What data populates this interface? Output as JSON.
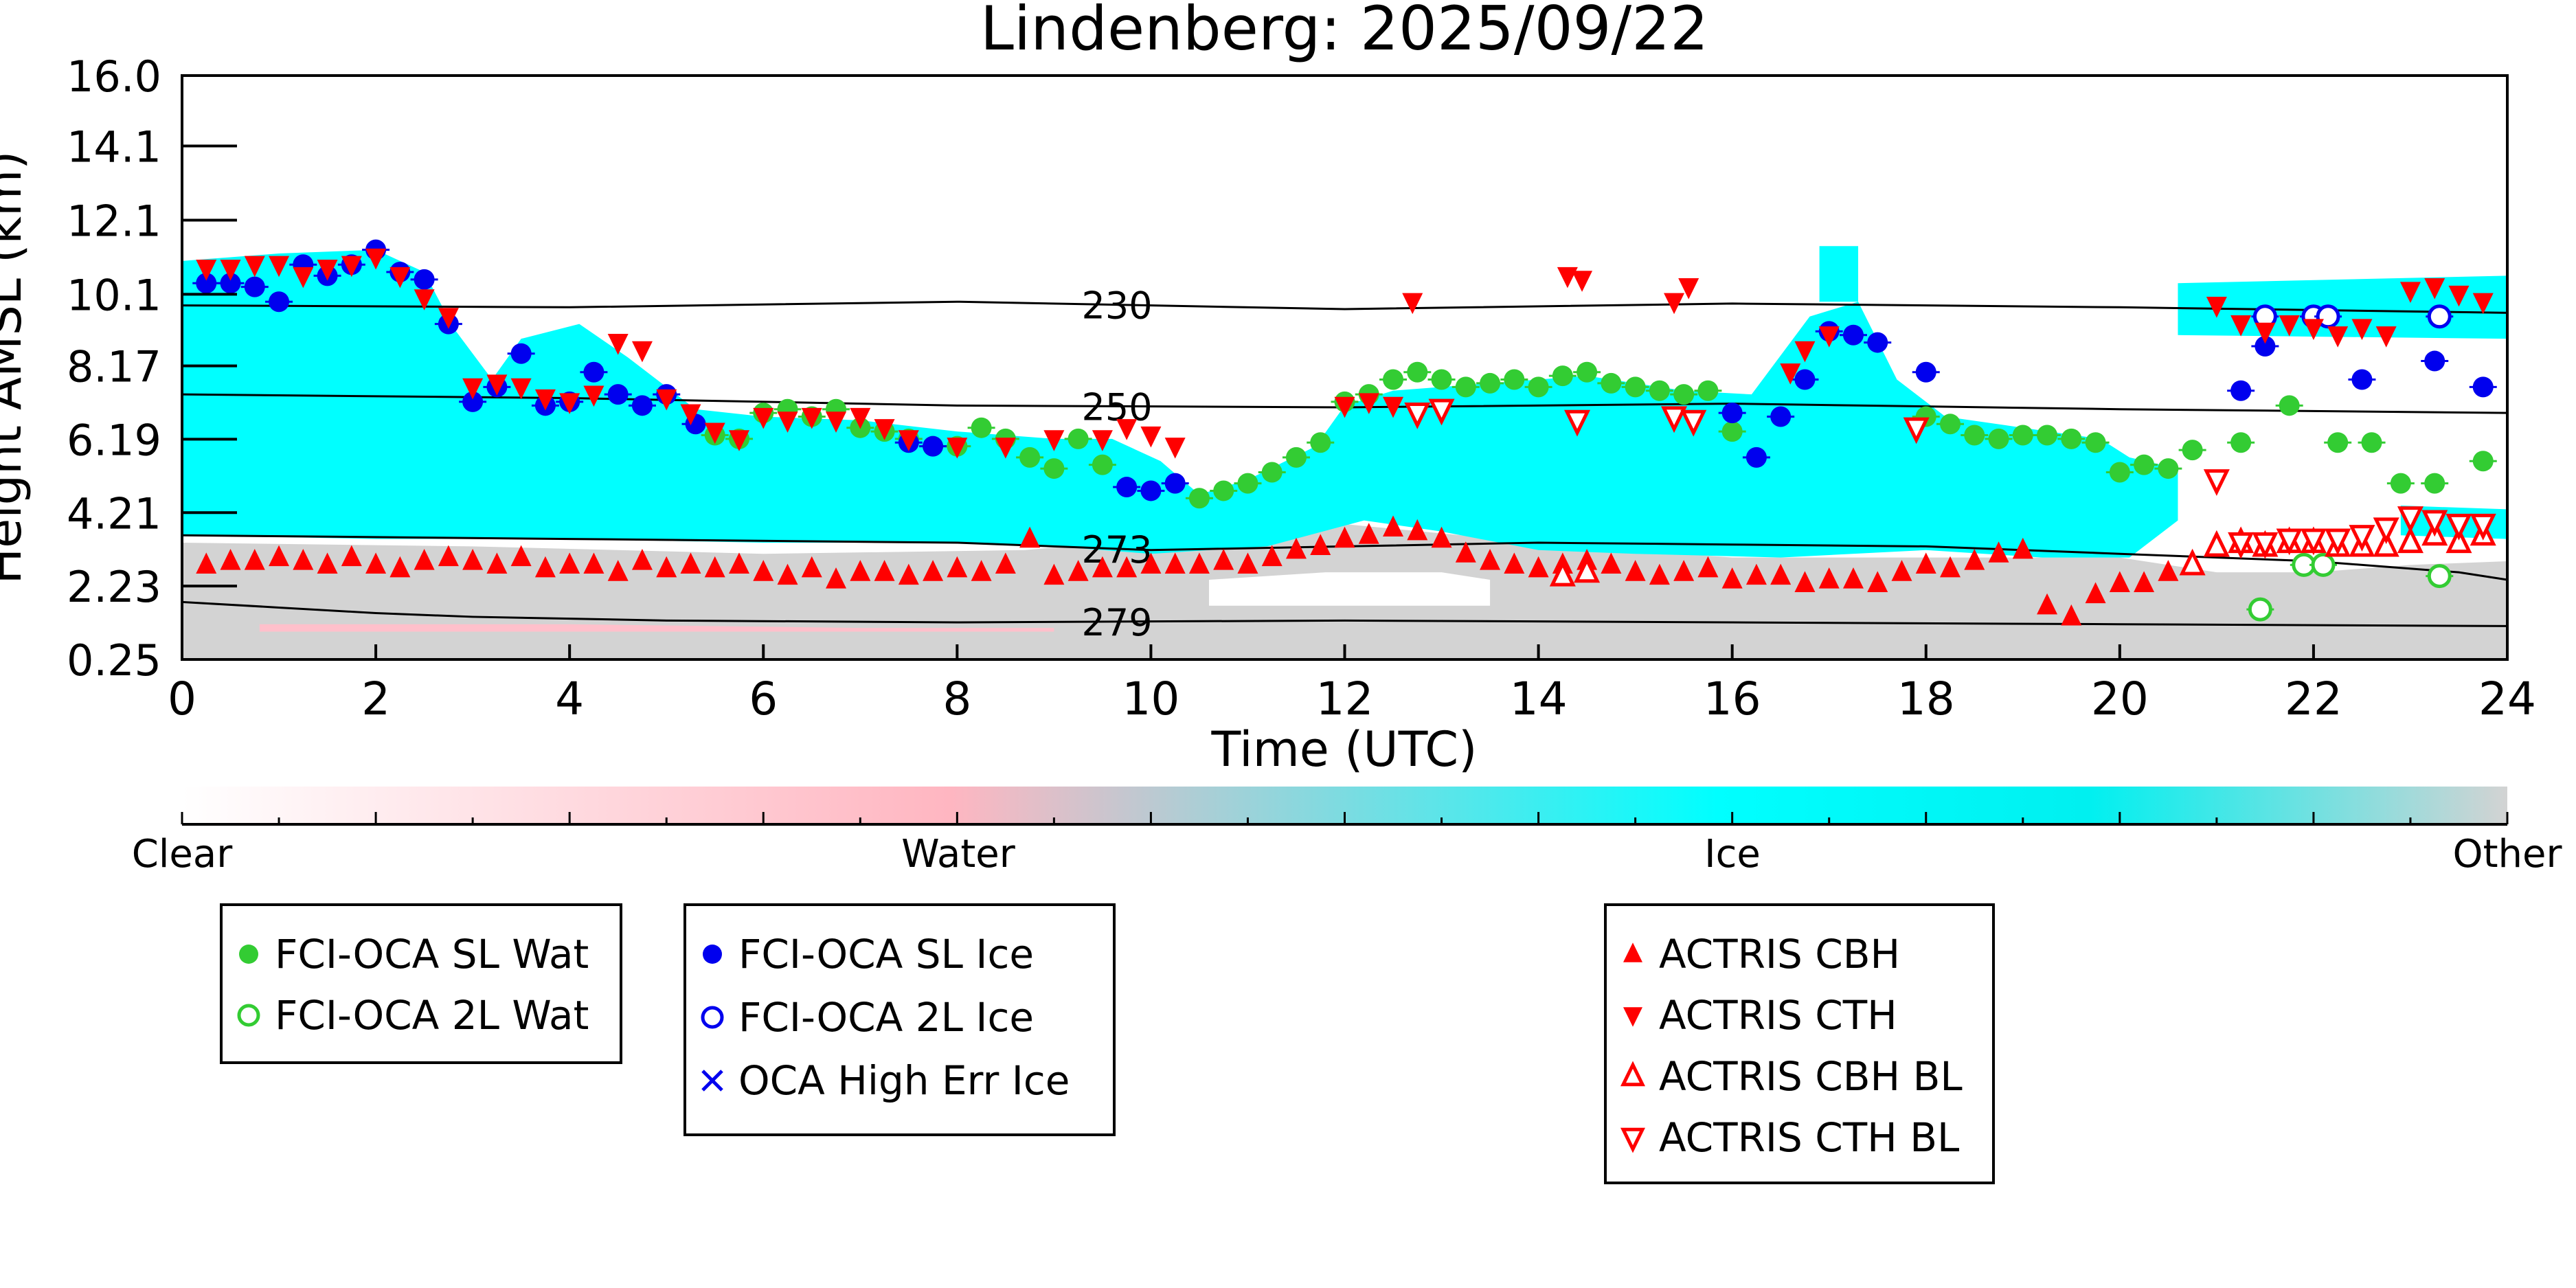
{
  "chart_data": {
    "type": "scatter",
    "title": "Lindenberg: 2025/09/22",
    "xlabel": "Time (UTC)",
    "ylabel": "Height AMSL (km)",
    "xlim": [
      0,
      24
    ],
    "ylim": [
      0.25,
      16.0
    ],
    "x_ticks": [
      "0",
      "2",
      "4",
      "6",
      "8",
      "10",
      "12",
      "14",
      "16",
      "18",
      "20",
      "22",
      "24"
    ],
    "y_ticks": [
      "0.25",
      "2.23",
      "4.21",
      "6.19",
      "8.17",
      "10.1",
      "12.1",
      "14.1",
      "16.0"
    ],
    "colorbar": {
      "labels": [
        "Clear",
        "Water",
        "Ice",
        "Other"
      ],
      "colors": [
        "#ffffff",
        "#ffb6c1",
        "#00ffff",
        "#d3d3d3"
      ]
    },
    "background_colors": {
      "ice": "#00ffff",
      "other": "#d3d3d3",
      "water": "#ffc0cb",
      "clear": "#ffffff"
    },
    "isotherms": [
      {
        "label": "230",
        "points": [
          [
            0,
            9.8
          ],
          [
            4,
            9.75
          ],
          [
            8,
            9.9
          ],
          [
            12,
            9.7
          ],
          [
            16,
            9.85
          ],
          [
            20,
            9.75
          ],
          [
            24,
            9.6
          ]
        ]
      },
      {
        "label": "250",
        "points": [
          [
            0,
            7.4
          ],
          [
            4,
            7.3
          ],
          [
            8,
            7.1
          ],
          [
            12,
            7.05
          ],
          [
            16,
            7.15
          ],
          [
            20,
            7.0
          ],
          [
            24,
            6.9
          ]
        ]
      },
      {
        "label": "273",
        "points": [
          [
            0,
            3.6
          ],
          [
            4,
            3.5
          ],
          [
            8,
            3.4
          ],
          [
            10,
            3.2
          ],
          [
            12,
            3.3
          ],
          [
            14,
            3.4
          ],
          [
            16,
            3.35
          ],
          [
            18,
            3.3
          ],
          [
            20,
            3.1
          ],
          [
            22,
            2.9
          ],
          [
            23.5,
            2.6
          ],
          [
            24,
            2.4
          ]
        ]
      },
      {
        "label": "279",
        "points": [
          [
            0,
            1.8
          ],
          [
            1,
            1.65
          ],
          [
            2,
            1.5
          ],
          [
            3,
            1.4
          ],
          [
            5,
            1.3
          ],
          [
            8,
            1.25
          ],
          [
            12,
            1.3
          ],
          [
            16,
            1.25
          ],
          [
            20,
            1.2
          ],
          [
            24,
            1.15
          ]
        ]
      }
    ],
    "series": [
      {
        "name": "FCI-OCA SL Wat",
        "marker": "filled-circle",
        "color": "#33cc33",
        "x": [
          5.5,
          5.75,
          6.0,
          6.25,
          6.5,
          6.75,
          7.0,
          7.25,
          7.5,
          7.75,
          8.0,
          8.25,
          8.5,
          8.75,
          9.0,
          9.25,
          9.5,
          10.5,
          10.75,
          11.0,
          11.25,
          11.5,
          11.75,
          12.0,
          12.25,
          12.5,
          12.75,
          13.0,
          13.25,
          13.5,
          13.75,
          14.0,
          14.25,
          14.5,
          14.75,
          15.0,
          15.25,
          15.5,
          15.75,
          16.0,
          18.0,
          18.25,
          18.5,
          18.75,
          19.0,
          19.25,
          19.5,
          19.75,
          20.0,
          20.25,
          20.5,
          20.75,
          21.25,
          21.75,
          22.25,
          22.6,
          22.9,
          23.25,
          23.75
        ],
        "y": [
          6.3,
          6.2,
          6.9,
          7.0,
          6.8,
          7.0,
          6.5,
          6.4,
          6.2,
          6.0,
          6.0,
          6.5,
          6.2,
          5.7,
          5.4,
          6.2,
          5.5,
          4.6,
          4.8,
          5.0,
          5.3,
          5.7,
          6.1,
          7.2,
          7.4,
          7.8,
          8.0,
          7.8,
          7.6,
          7.7,
          7.8,
          7.6,
          7.9,
          8.0,
          7.7,
          7.6,
          7.5,
          7.4,
          7.5,
          6.4,
          6.8,
          6.6,
          6.3,
          6.2,
          6.3,
          6.3,
          6.2,
          6.1,
          5.3,
          5.5,
          5.4,
          5.9,
          6.1,
          7.1,
          6.1,
          6.1,
          5.0,
          5.0,
          5.6
        ]
      },
      {
        "name": "FCI-OCA 2L Wat",
        "marker": "open-circle",
        "color": "#33cc33",
        "x": [
          21.45,
          21.9,
          22.1,
          23.3
        ],
        "y": [
          1.6,
          2.8,
          2.8,
          2.5
        ]
      },
      {
        "name": "FCI-OCA SL Ice",
        "marker": "filled-circle",
        "color": "#0000ee",
        "x": [
          0.25,
          0.5,
          0.75,
          1.0,
          1.25,
          1.5,
          1.75,
          2.0,
          2.25,
          2.5,
          2.75,
          3.0,
          3.25,
          3.5,
          3.75,
          4.0,
          4.25,
          4.5,
          4.75,
          5.0,
          5.3,
          7.5,
          7.75,
          9.75,
          10.0,
          10.25,
          16.0,
          16.25,
          16.5,
          16.75,
          17.0,
          17.25,
          17.5,
          18.0,
          21.25,
          21.5,
          22.5,
          23.25,
          23.75
        ],
        "y": [
          10.4,
          10.4,
          10.3,
          9.9,
          10.9,
          10.6,
          10.9,
          11.3,
          10.7,
          10.5,
          9.3,
          7.2,
          7.6,
          8.5,
          7.1,
          7.2,
          8.0,
          7.4,
          7.1,
          7.4,
          6.6,
          6.1,
          6.0,
          4.9,
          4.8,
          5.0,
          6.9,
          5.7,
          6.8,
          7.8,
          9.1,
          9.0,
          8.8,
          8.0,
          7.5,
          8.7,
          7.8,
          8.3,
          7.6
        ]
      },
      {
        "name": "FCI-OCA 2L Ice",
        "marker": "open-circle",
        "color": "#0000ee",
        "x": [
          21.5,
          22.0,
          22.15,
          23.3
        ],
        "y": [
          9.5,
          9.5,
          9.5,
          9.5
        ]
      },
      {
        "name": "OCA High Err Ice",
        "marker": "x",
        "color": "#0000ee",
        "x": [],
        "y": []
      },
      {
        "name": "ACTRIS CBH",
        "marker": "triangle-up",
        "color": "#ff0000",
        "x": [
          0.25,
          0.5,
          0.75,
          1.0,
          1.25,
          1.5,
          1.75,
          2.0,
          2.25,
          2.5,
          2.75,
          3.0,
          3.25,
          3.5,
          3.75,
          4.0,
          4.25,
          4.5,
          4.75,
          5.0,
          5.25,
          5.5,
          5.75,
          6.0,
          6.25,
          6.5,
          6.75,
          7.0,
          7.25,
          7.5,
          7.75,
          8.0,
          8.25,
          8.5,
          8.75,
          9.0,
          9.25,
          9.5,
          9.75,
          10.0,
          10.25,
          10.5,
          10.75,
          11.0,
          11.25,
          11.5,
          11.75,
          12.0,
          12.25,
          12.5,
          12.75,
          13.0,
          13.25,
          13.5,
          13.75,
          14.0,
          14.25,
          14.5,
          14.75,
          15.0,
          15.25,
          15.5,
          15.75,
          16.0,
          16.25,
          16.5,
          16.75,
          17.0,
          17.25,
          17.5,
          17.75,
          18.0,
          18.25,
          18.5,
          18.75,
          19.0,
          19.25,
          19.5,
          19.75,
          20.0,
          20.25,
          20.5
        ],
        "y": [
          2.8,
          2.9,
          2.9,
          3.0,
          2.9,
          2.8,
          3.0,
          2.8,
          2.7,
          2.9,
          3.0,
          2.9,
          2.8,
          3.0,
          2.7,
          2.8,
          2.8,
          2.6,
          2.9,
          2.7,
          2.8,
          2.7,
          2.8,
          2.6,
          2.5,
          2.7,
          2.4,
          2.6,
          2.6,
          2.5,
          2.6,
          2.7,
          2.6,
          2.8,
          3.5,
          2.5,
          2.6,
          2.7,
          2.7,
          2.8,
          2.8,
          2.8,
          2.9,
          2.8,
          3.0,
          3.2,
          3.3,
          3.5,
          3.6,
          3.8,
          3.7,
          3.5,
          3.1,
          2.9,
          2.8,
          2.7,
          2.8,
          2.9,
          2.8,
          2.6,
          2.5,
          2.6,
          2.7,
          2.4,
          2.5,
          2.5,
          2.3,
          2.4,
          2.4,
          2.3,
          2.6,
          2.8,
          2.7,
          2.9,
          3.1,
          3.2,
          1.7,
          1.4,
          2.0,
          2.3,
          2.3,
          2.6
        ]
      },
      {
        "name": "ACTRIS CTH",
        "marker": "triangle-down",
        "color": "#ff0000",
        "x": [
          0.25,
          0.5,
          0.75,
          1.0,
          1.25,
          1.5,
          1.75,
          2.0,
          2.25,
          2.5,
          2.75,
          3.0,
          3.25,
          3.5,
          3.75,
          4.0,
          4.25,
          4.5,
          4.75,
          5.0,
          5.25,
          5.5,
          5.75,
          6.0,
          6.25,
          6.5,
          6.75,
          7.0,
          7.25,
          7.5,
          8.0,
          8.5,
          9.0,
          9.5,
          9.75,
          10.0,
          10.25,
          12.0,
          12.25,
          12.5,
          12.7,
          14.3,
          14.45,
          15.4,
          15.55,
          16.6,
          16.75,
          17.0,
          21.0,
          21.25,
          21.5,
          21.75,
          22.0,
          22.25,
          22.5,
          22.75,
          23.0,
          23.25,
          23.5,
          23.75
        ],
        "y": [
          10.8,
          10.8,
          10.9,
          10.9,
          10.6,
          10.8,
          10.9,
          11.1,
          10.6,
          10.0,
          9.5,
          7.6,
          7.7,
          7.6,
          7.3,
          7.2,
          7.4,
          8.8,
          8.6,
          7.3,
          6.9,
          6.4,
          6.2,
          6.8,
          6.7,
          6.8,
          6.7,
          6.8,
          6.5,
          6.2,
          6.0,
          6.0,
          6.2,
          6.2,
          6.5,
          6.3,
          6.0,
          7.1,
          7.2,
          7.1,
          9.9,
          10.6,
          10.5,
          9.9,
          10.3,
          8.0,
          8.6,
          9.0,
          9.8,
          9.3,
          9.1,
          9.3,
          9.2,
          9.0,
          9.2,
          9.0,
          10.2,
          10.3,
          10.1,
          9.9
        ]
      },
      {
        "name": "ACTRIS CBH BL",
        "marker": "open-triangle-up",
        "color": "#ff0000",
        "x": [
          14.25,
          14.5,
          20.75,
          21.0,
          21.25,
          21.5,
          21.75,
          22.0,
          22.25,
          22.5,
          22.75,
          23.0,
          23.25,
          23.5,
          23.75
        ],
        "y": [
          2.5,
          2.6,
          2.8,
          3.3,
          3.4,
          3.3,
          3.4,
          3.4,
          3.3,
          3.3,
          3.3,
          3.4,
          3.6,
          3.4,
          3.6
        ]
      },
      {
        "name": "ACTRIS CTH BL",
        "marker": "open-triangle-down",
        "color": "#ff0000",
        "x": [
          12.75,
          13.0,
          14.4,
          15.4,
          15.6,
          17.9,
          21.0,
          21.25,
          21.5,
          21.75,
          22.0,
          22.25,
          22.5,
          22.75,
          23.0,
          23.25,
          23.5,
          23.75
        ],
        "y": [
          6.9,
          7.0,
          6.7,
          6.8,
          6.7,
          6.5,
          5.1,
          3.4,
          3.4,
          3.5,
          3.5,
          3.5,
          3.6,
          3.8,
          4.1,
          4.0,
          3.9,
          3.9
        ]
      }
    ],
    "legend_groups": [
      [
        "FCI-OCA SL Wat",
        "FCI-OCA 2L Wat"
      ],
      [
        "FCI-OCA SL Ice",
        "FCI-OCA 2L Ice",
        "OCA High Err Ice"
      ],
      [
        "ACTRIS CBH",
        "ACTRIS CTH",
        "ACTRIS CBH BL",
        "ACTRIS CTH BL"
      ]
    ],
    "grid": false
  }
}
